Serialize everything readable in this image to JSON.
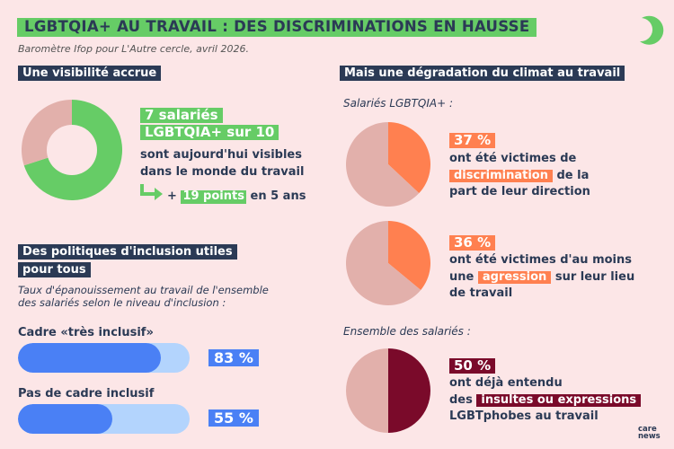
{
  "header": {
    "title": "LGBTQIA+ AU TRAVAIL : DES DISCRIMINATIONS EN HAUSSE",
    "source": "Baromètre Ifop pour L'Autre cercle, avril 2026."
  },
  "visibility": {
    "heading": "Une visibilité accrue",
    "stat_line1": "7 salariés",
    "stat_line2": "LGBTQIA+ sur 10",
    "desc_line1": "sont aujourd'hui visibles",
    "desc_line2": "dans le monde du travail",
    "plus": "+",
    "points": "19 points",
    "period": "en 5 ans"
  },
  "inclusion": {
    "heading_line1": "Des politiques d'inclusion utiles",
    "heading_line2": "pour tous",
    "subtitle_line1": "Taux d'épanouissement au travail de l'ensemble",
    "subtitle_line2": "des salariés selon le niveau d'inclusion :",
    "bars": [
      {
        "label": "Cadre «très inclusif»",
        "value_label": "83 %"
      },
      {
        "label": "Pas de cadre inclusif",
        "value_label": "55 %"
      }
    ]
  },
  "climate": {
    "heading": "Mais une dégradation du climat au travail",
    "group1": "Salariés LGBTQIA+ :",
    "group2": "Ensemble des salariés :",
    "stat1": {
      "value": "37 %",
      "l1": "ont été victimes de",
      "hl": "discrimination",
      "l2": "de la",
      "l3": "part de leur direction"
    },
    "stat2": {
      "value": "36 %",
      "l1": "ont été victimes d'au moins",
      "pre": "une",
      "hl": "agression",
      "l2": "sur leur lieu",
      "l3": "de travail"
    },
    "stat3": {
      "value": "50 %",
      "l1": "ont déjà entendu",
      "pre": "des",
      "hl": "insultes ou expressions",
      "l3": "LGBTphobes au travail"
    }
  },
  "brand": {
    "logo": "carenews"
  },
  "colors": {
    "green": "#66cc66",
    "navy": "#2b3a55",
    "pink": "#e2b0ab",
    "orange": "#ff8050",
    "maroon": "#7a0a2a",
    "blue": "#4a80f5",
    "lightblue": "#b3d4fd"
  },
  "chart_data": [
    {
      "type": "pie",
      "title": "LGBTQIA+ visibles au travail",
      "values": [
        70,
        30
      ],
      "labels": [
        "visibles",
        "autres"
      ]
    },
    {
      "type": "bar",
      "title": "Taux d'épanouissement au travail",
      "categories": [
        "Cadre «très inclusif»",
        "Pas de cadre inclusif"
      ],
      "values": [
        83,
        55
      ],
      "ylim": [
        0,
        100
      ]
    },
    {
      "type": "pie",
      "title": "Discrimination de la part de leur direction",
      "values": [
        37,
        63
      ]
    },
    {
      "type": "pie",
      "title": "Au moins une agression",
      "values": [
        36,
        64
      ]
    },
    {
      "type": "pie",
      "title": "Insultes ou expressions LGBTphobes entendues",
      "values": [
        50,
        50
      ]
    }
  ]
}
